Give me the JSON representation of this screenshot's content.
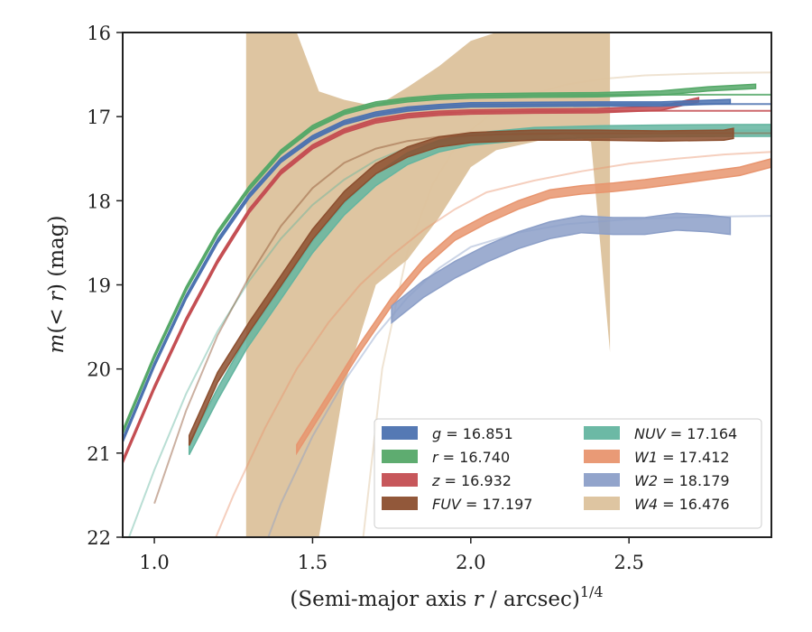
{
  "chart_data": {
    "type": "line",
    "xlabel": "(Semi-major axis r / arcsec)^{1/4}",
    "xlabel_parts": {
      "prefix": "(Semi-major axis ",
      "var": "r",
      "middle": " / arcsec)",
      "sup": "1/4"
    },
    "ylabel": "m(< r) (mag)",
    "ylabel_parts": {
      "m": "m",
      "open": "(",
      "lt": "< ",
      "r": "r",
      "close": ") (mag)"
    },
    "xlim": [
      0.9,
      2.95
    ],
    "ylim": [
      22,
      16
    ],
    "y_inverted": true,
    "xticks": [
      1.0,
      1.5,
      2.0,
      2.5
    ],
    "xtick_labels": [
      "1.0",
      "1.5",
      "2.0",
      "2.5"
    ],
    "yticks": [
      16,
      17,
      18,
      19,
      20,
      21,
      22
    ],
    "ytick_labels": [
      "16",
      "17",
      "18",
      "19",
      "20",
      "21",
      "22"
    ],
    "grid": false,
    "legend_position": "lower-right",
    "legend_columns": 2,
    "series": [
      {
        "band": "g",
        "name": "g = 16.851",
        "label_var": "g",
        "label_value": "= 16.851",
        "color": "#4c72b0",
        "x": [
          0.9,
          1.0,
          1.1,
          1.2,
          1.3,
          1.4,
          1.5,
          1.6,
          1.7,
          1.8,
          1.9,
          2.0,
          2.2,
          2.4,
          2.6,
          2.82
        ],
        "y": [
          20.85,
          19.95,
          19.15,
          18.48,
          17.94,
          17.52,
          17.25,
          17.07,
          16.97,
          16.91,
          16.88,
          16.86,
          16.855,
          16.85,
          16.85,
          16.82
        ],
        "width": 0.05,
        "model_y": [
          20.85,
          19.95,
          19.15,
          18.48,
          17.94,
          17.52,
          17.25,
          17.07,
          16.97,
          16.91,
          16.88,
          16.86,
          16.855,
          16.852,
          16.851,
          16.851,
          16.851
        ],
        "model_x": [
          0.9,
          1.0,
          1.1,
          1.2,
          1.3,
          1.4,
          1.5,
          1.6,
          1.7,
          1.8,
          1.9,
          2.0,
          2.2,
          2.4,
          2.6,
          2.8,
          2.95
        ]
      },
      {
        "band": "r",
        "name": "r = 16.740",
        "label_var": "r",
        "label_value": "= 16.740",
        "color": "#55a868",
        "x": [
          0.9,
          1.0,
          1.1,
          1.2,
          1.3,
          1.4,
          1.5,
          1.6,
          1.7,
          1.8,
          1.9,
          2.0,
          2.2,
          2.4,
          2.6,
          2.75,
          2.9
        ],
        "y": [
          20.75,
          19.85,
          19.05,
          18.38,
          17.85,
          17.42,
          17.13,
          16.95,
          16.85,
          16.8,
          16.77,
          16.755,
          16.745,
          16.74,
          16.72,
          16.67,
          16.64
        ],
        "width": 0.05,
        "model_y": [
          20.75,
          19.85,
          19.05,
          18.38,
          17.85,
          17.42,
          17.13,
          16.95,
          16.85,
          16.8,
          16.77,
          16.755,
          16.745,
          16.742,
          16.741,
          16.74,
          16.74
        ],
        "model_x": [
          0.9,
          1.0,
          1.1,
          1.2,
          1.3,
          1.4,
          1.5,
          1.6,
          1.7,
          1.8,
          1.9,
          2.0,
          2.2,
          2.4,
          2.6,
          2.8,
          2.95
        ]
      },
      {
        "band": "z",
        "name": "z = 16.932",
        "label_var": "z",
        "label_value": "= 16.932",
        "color": "#c44e52",
        "x": [
          0.9,
          1.0,
          1.1,
          1.2,
          1.3,
          1.4,
          1.5,
          1.6,
          1.7,
          1.8,
          1.9,
          2.0,
          2.2,
          2.4,
          2.6,
          2.72
        ],
        "y": [
          21.1,
          20.22,
          19.42,
          18.72,
          18.12,
          17.66,
          17.36,
          17.17,
          17.05,
          16.99,
          16.96,
          16.945,
          16.935,
          16.93,
          16.9,
          16.8
        ],
        "width": 0.05,
        "model_y": [
          21.1,
          20.22,
          19.42,
          18.72,
          18.12,
          17.66,
          17.36,
          17.17,
          17.05,
          16.99,
          16.96,
          16.945,
          16.935,
          16.933,
          16.932,
          16.932,
          16.932
        ],
        "model_x": [
          0.9,
          1.0,
          1.1,
          1.2,
          1.3,
          1.4,
          1.5,
          1.6,
          1.7,
          1.8,
          1.9,
          2.0,
          2.2,
          2.4,
          2.6,
          2.8,
          2.95
        ]
      },
      {
        "band": "FUV",
        "name": "FUV = 17.197",
        "label_var": "FUV",
        "label_value": "= 17.197",
        "color": "#8c4f2f",
        "x": [
          1.11,
          1.2,
          1.3,
          1.4,
          1.5,
          1.6,
          1.7,
          1.8,
          1.9,
          2.0,
          2.2,
          2.4,
          2.6,
          2.8,
          2.83
        ],
        "y": [
          20.85,
          20.1,
          19.5,
          18.95,
          18.4,
          17.95,
          17.62,
          17.42,
          17.3,
          17.25,
          17.22,
          17.22,
          17.23,
          17.22,
          17.2
        ],
        "width": 0.12,
        "model_y": [
          21.6,
          20.5,
          19.6,
          18.9,
          18.3,
          17.85,
          17.55,
          17.38,
          17.29,
          17.24,
          17.21,
          17.2,
          17.198,
          17.197,
          17.197
        ],
        "model_x": [
          1.0,
          1.1,
          1.2,
          1.3,
          1.4,
          1.5,
          1.6,
          1.7,
          1.8,
          1.9,
          2.1,
          2.3,
          2.5,
          2.7,
          2.95
        ]
      },
      {
        "band": "NUV",
        "name": "NUV = 17.164",
        "label_var": "NUV",
        "label_value": "= 17.164",
        "color": "#64b5a0",
        "x": [
          1.11,
          1.2,
          1.29,
          1.4,
          1.5,
          1.6,
          1.7,
          1.8,
          1.9,
          2.0,
          2.2,
          2.4,
          2.6,
          2.8,
          2.95
        ],
        "y": [
          20.95,
          20.3,
          19.7,
          19.1,
          18.55,
          18.1,
          17.75,
          17.5,
          17.35,
          17.27,
          17.2,
          17.18,
          17.17,
          17.165,
          17.164
        ],
        "width": 0.14,
        "model_y": [
          22.2,
          21.2,
          20.3,
          19.55,
          18.95,
          18.45,
          18.05,
          17.75,
          17.52,
          17.37,
          17.22,
          17.18,
          17.17,
          17.165,
          17.164
        ],
        "model_x": [
          0.9,
          1.0,
          1.1,
          1.2,
          1.3,
          1.4,
          1.5,
          1.6,
          1.7,
          1.8,
          2.0,
          2.2,
          2.4,
          2.6,
          2.95
        ]
      },
      {
        "band": "W1",
        "name": "W1 = 17.412",
        "label_var": "W1",
        "label_value": "= 17.412",
        "color": "#e8956f",
        "x": [
          1.45,
          1.55,
          1.65,
          1.75,
          1.85,
          1.95,
          2.05,
          2.15,
          2.25,
          2.35,
          2.45,
          2.55,
          2.65,
          2.75,
          2.85,
          2.95
        ],
        "y": [
          20.95,
          20.35,
          19.75,
          19.2,
          18.75,
          18.42,
          18.22,
          18.05,
          17.92,
          17.87,
          17.84,
          17.8,
          17.75,
          17.7,
          17.65,
          17.55
        ],
        "width": 0.1,
        "model_y": [
          22.4,
          21.5,
          20.7,
          20.0,
          19.45,
          19.0,
          18.65,
          18.35,
          18.1,
          17.9,
          17.76,
          17.65,
          17.56,
          17.5,
          17.45,
          17.42
        ],
        "model_x": [
          1.15,
          1.25,
          1.35,
          1.45,
          1.55,
          1.65,
          1.75,
          1.85,
          1.95,
          2.05,
          2.2,
          2.35,
          2.5,
          2.65,
          2.8,
          2.95
        ]
      },
      {
        "band": "W2",
        "name": "W2 = 18.179",
        "label_var": "W2",
        "label_value": "= 18.179",
        "color": "#8c9fc8",
        "x": [
          1.75,
          1.85,
          1.95,
          2.05,
          2.15,
          2.25,
          2.35,
          2.45,
          2.55,
          2.65,
          2.75,
          2.82
        ],
        "y": [
          19.35,
          19.05,
          18.82,
          18.63,
          18.47,
          18.35,
          18.28,
          18.3,
          18.3,
          18.25,
          18.27,
          18.3
        ],
        "width": 0.2,
        "model_y": [
          22.6,
          21.6,
          20.8,
          20.15,
          19.6,
          19.15,
          18.8,
          18.55,
          18.38,
          18.28,
          18.22,
          18.19,
          18.18
        ],
        "model_x": [
          1.3,
          1.4,
          1.5,
          1.6,
          1.7,
          1.8,
          1.9,
          2.0,
          2.15,
          2.3,
          2.5,
          2.75,
          2.95
        ]
      },
      {
        "band": "W4",
        "name": "W4 = 16.476",
        "label_var": "W4",
        "label_value": "= 16.476",
        "color": "#dcc29c",
        "band_x": [
          1.29,
          1.29,
          1.45,
          1.52,
          1.6,
          1.7,
          1.8,
          1.9,
          2.0,
          2.08,
          2.2,
          2.3,
          2.38,
          2.44,
          2.44
        ],
        "band_upper": [
          22,
          16.0,
          16.0,
          16.7,
          16.8,
          16.88,
          16.65,
          16.4,
          16.1,
          16.0,
          16.0,
          16.0,
          16.0,
          16.0,
          16.0
        ],
        "band_lower": [
          22,
          22.0,
          22.0,
          22.0,
          20.2,
          19.0,
          18.7,
          18.2,
          17.6,
          17.4,
          17.3,
          17.2,
          17.3,
          19.8,
          16.0
        ],
        "model_y": [
          22.0,
          20.0,
          18.6,
          17.8,
          17.25,
          16.95,
          16.75,
          16.62,
          16.55,
          16.51,
          16.49,
          16.48,
          16.476
        ],
        "model_x": [
          1.66,
          1.72,
          1.8,
          1.88,
          1.97,
          2.07,
          2.18,
          2.3,
          2.42,
          2.55,
          2.7,
          2.82,
          2.95
        ]
      }
    ]
  }
}
